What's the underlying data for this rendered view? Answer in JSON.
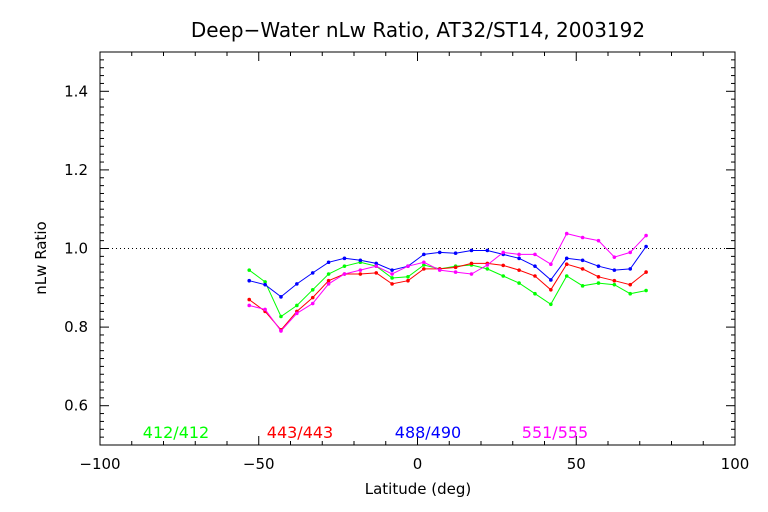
{
  "chart_data": {
    "type": "line",
    "title": "Deep−Water nLw Ratio, AT32/ST14, 2003192",
    "xlabel": "Latitude (deg)",
    "ylabel": "nLw Ratio",
    "xlim": [
      -100,
      100
    ],
    "ylim": [
      0.5,
      1.5
    ],
    "xticks": [
      -100,
      -50,
      0,
      50,
      100
    ],
    "xtick_labels": [
      "−100",
      "−50",
      "0",
      "50",
      "100"
    ],
    "yticks": [
      0.6,
      0.8,
      1.0,
      1.2,
      1.4
    ],
    "ytick_labels": [
      "0.6",
      "0.8",
      "1.0",
      "1.2",
      "1.4"
    ],
    "reference_line": 1.0,
    "grid": false,
    "legend_position": "bottom, inside plot",
    "x": [
      -53,
      -48,
      -43,
      -38,
      -33,
      -28,
      -23,
      -18,
      -13,
      -8,
      -3,
      2,
      7,
      12,
      17,
      22,
      27,
      32,
      37,
      42,
      47,
      52,
      57,
      62,
      67,
      72
    ],
    "series": [
      {
        "name": "412/412",
        "color": "#00ff00",
        "values": [
          0.945,
          0.915,
          0.827,
          0.855,
          0.895,
          0.935,
          0.955,
          0.965,
          0.955,
          0.925,
          0.928,
          0.958,
          0.948,
          0.955,
          0.958,
          0.948,
          0.93,
          0.912,
          0.885,
          0.858,
          0.93,
          0.905,
          0.912,
          0.908,
          0.885,
          0.893
        ]
      },
      {
        "name": "443/443",
        "color": "#ff0000",
        "values": [
          0.87,
          0.84,
          0.793,
          0.84,
          0.875,
          0.918,
          0.935,
          0.935,
          0.938,
          0.91,
          0.918,
          0.948,
          0.948,
          0.952,
          0.962,
          0.962,
          0.957,
          0.945,
          0.93,
          0.895,
          0.96,
          0.948,
          0.928,
          0.918,
          0.908,
          0.94
        ]
      },
      {
        "name": "488/490",
        "color": "#0000ff",
        "values": [
          0.918,
          0.908,
          0.877,
          0.91,
          0.938,
          0.965,
          0.975,
          0.97,
          0.962,
          0.945,
          0.955,
          0.985,
          0.99,
          0.988,
          0.995,
          0.995,
          0.985,
          0.975,
          0.955,
          0.92,
          0.975,
          0.97,
          0.955,
          0.945,
          0.948,
          1.005
        ]
      },
      {
        "name": "551/555",
        "color": "#ff00ff",
        "values": [
          0.855,
          0.845,
          0.79,
          0.835,
          0.86,
          0.91,
          0.935,
          0.945,
          0.955,
          0.935,
          0.955,
          0.965,
          0.945,
          0.94,
          0.935,
          0.958,
          0.99,
          0.985,
          0.985,
          0.96,
          1.038,
          1.028,
          1.02,
          0.978,
          0.99,
          1.033
        ]
      }
    ]
  }
}
